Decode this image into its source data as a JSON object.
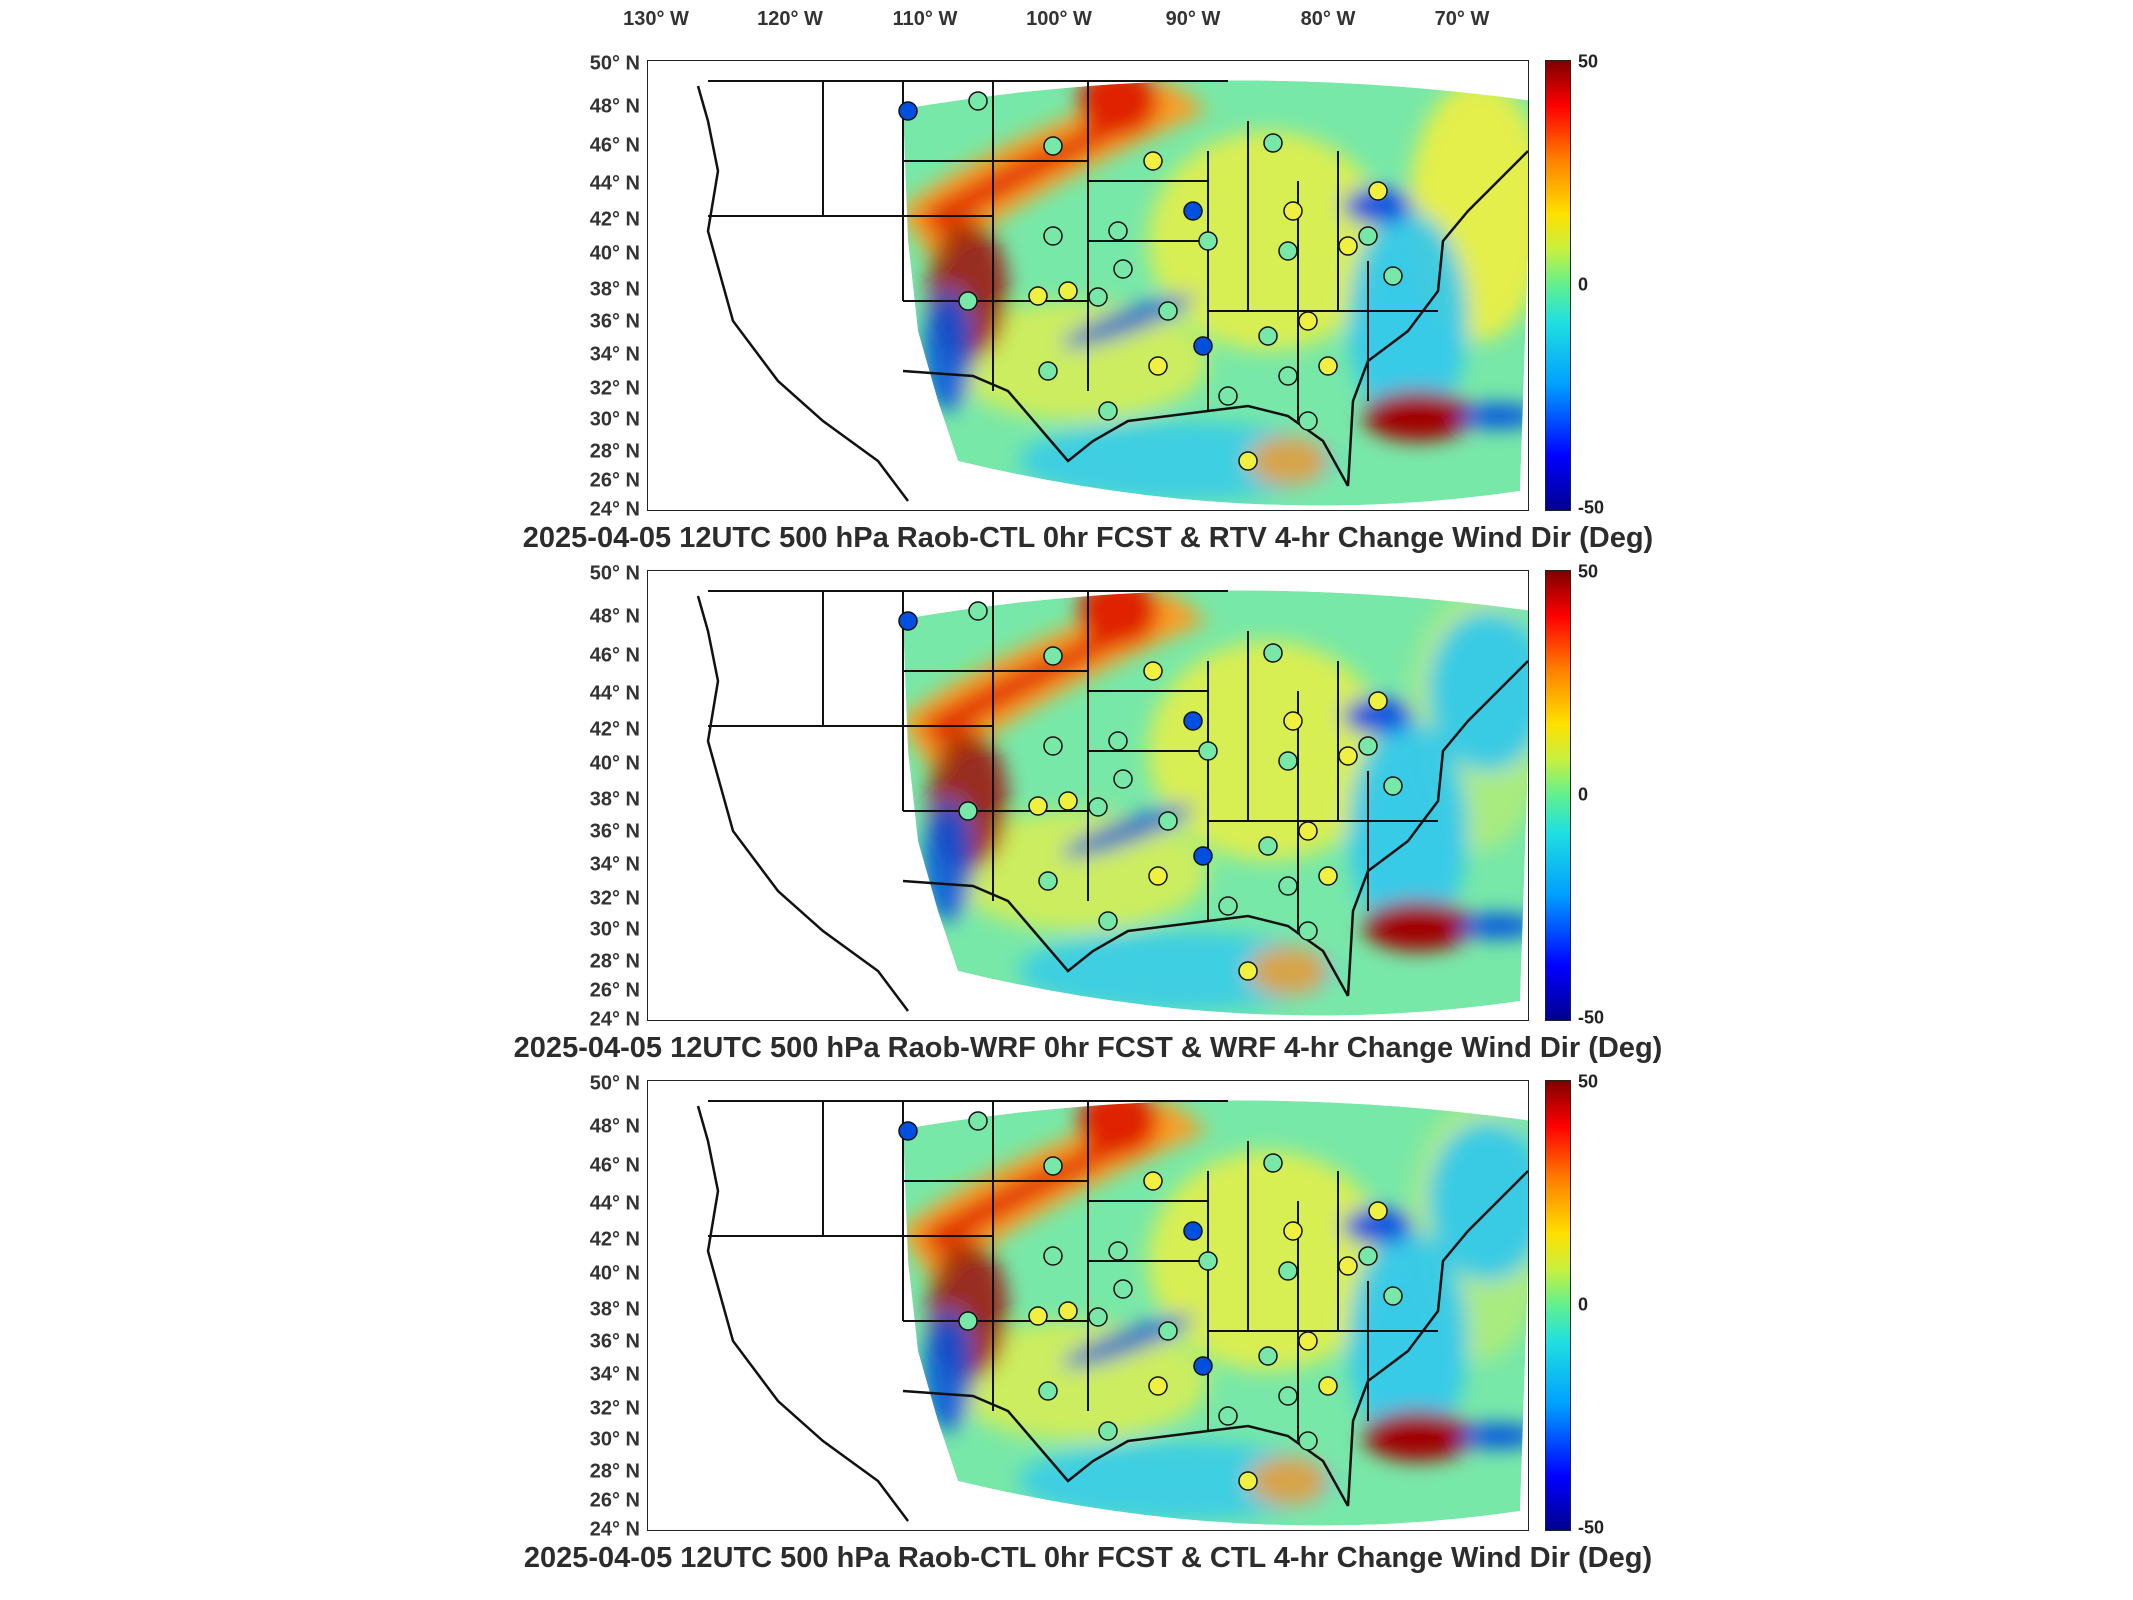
{
  "lon_labels": [
    "130° W",
    "120° W",
    "110° W",
    "100° W",
    "90° W",
    "80° W",
    "70° W"
  ],
  "lat_labels": [
    "50° N",
    "48° N",
    "46° N",
    "44° N",
    "42° N",
    "40° N",
    "38° N",
    "36° N",
    "34° N",
    "32° N",
    "30° N",
    "28° N",
    "26° N",
    "24° N"
  ],
  "colorbar": {
    "max": "50",
    "mid": "0",
    "min": "-50"
  },
  "panels": [
    {
      "title": "2025-04-05 12UTC 500 hPa Raob-CTL 0hr FCST & RTV 4-hr Change Wind Dir (Deg)"
    },
    {
      "title": "2025-04-05 12UTC 500 hPa Raob-WRF 0hr FCST & WRF 4-hr Change Wind Dir (Deg)"
    },
    {
      "title": "2025-04-05 12UTC 500 hPa Raob-CTL 0hr FCST & CTL 4-hr Change Wind Dir (Deg)"
    }
  ],
  "colors": {
    "field_base": "#78e8a8",
    "north_warm": "#ff9a20",
    "yellow": "#f0f040",
    "cyan": "#30c8f0",
    "blue": "#0050e0",
    "red": "#e02000",
    "darkred": "#a00000",
    "border": "#111111"
  }
}
